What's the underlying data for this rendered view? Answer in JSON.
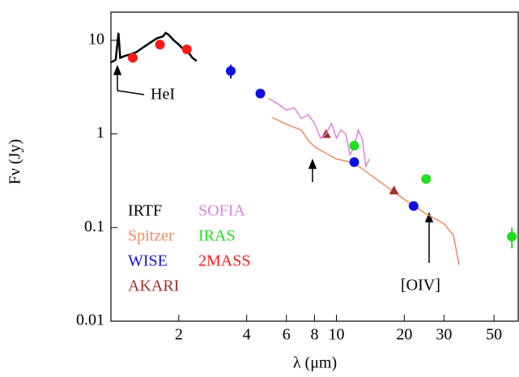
{
  "chart_data": {
    "type": "scatter",
    "log_x": true,
    "log_y": true,
    "x_label": "λ (μm)",
    "y_label": "Fν (Jy)",
    "xlim": [
      1,
      64
    ],
    "ylim": [
      0.01,
      20
    ],
    "xticks": [
      2,
      4,
      6,
      8,
      10,
      20,
      30,
      50
    ],
    "yticks": [
      0.01,
      0.1,
      1,
      10
    ],
    "annotations": [
      "HeI",
      "[OIV]"
    ],
    "series": [
      {
        "name": "IRTF",
        "color": "#000000",
        "kind": "line",
        "x": [
          1.0,
          1.05,
          1.08,
          1.1,
          1.15,
          1.2,
          1.3,
          1.4,
          1.5,
          1.6,
          1.7,
          1.75,
          1.8,
          1.9,
          2.0,
          2.1,
          2.2,
          2.3,
          2.4
        ],
        "values": [
          5.8,
          6.2,
          12,
          6.5,
          6.8,
          7,
          7.5,
          8.5,
          9.5,
          10.5,
          11,
          12,
          11.5,
          10,
          9,
          8,
          7.5,
          6.5,
          6
        ]
      },
      {
        "name": "Spitzer",
        "color": "#f08a5d",
        "kind": "line",
        "x": [
          5.2,
          6,
          7,
          7.5,
          8,
          9,
          10,
          12,
          15,
          20,
          25,
          30,
          33,
          35
        ],
        "values": [
          1.5,
          1.27,
          1.1,
          0.85,
          0.73,
          0.62,
          0.54,
          0.49,
          0.33,
          0.2,
          0.14,
          0.11,
          0.083,
          0.04
        ]
      },
      {
        "name": "WISE",
        "color": "#1010e0",
        "kind": "marker",
        "shape": "circle",
        "x": [
          3.4,
          4.6,
          12,
          22
        ],
        "values": [
          4.7,
          2.7,
          0.5,
          0.17
        ],
        "errors": [
          0.8,
          null,
          null,
          null
        ]
      },
      {
        "name": "AKARI",
        "color": "#a0302a",
        "kind": "marker",
        "shape": "triangle",
        "x": [
          9,
          18
        ],
        "values": [
          1.0,
          0.25
        ]
      },
      {
        "name": "SOFIA",
        "color": "#e080e0",
        "kind": "line",
        "x": [
          5,
          5.5,
          6,
          6.5,
          7,
          7.5,
          8,
          8.5,
          9,
          9.5,
          10,
          10.5,
          11,
          11.5,
          12,
          12.5,
          13,
          13.5,
          14
        ],
        "values": [
          2.4,
          2.1,
          1.8,
          1.9,
          1.46,
          1.6,
          1.3,
          0.9,
          1.0,
          1.3,
          0.9,
          1.1,
          1.0,
          0.6,
          0.73,
          1.1,
          0.9,
          0.45,
          0.54
        ]
      },
      {
        "name": "IRAS",
        "color": "#22dd22",
        "kind": "marker",
        "shape": "circle",
        "x": [
          12,
          25,
          60
        ],
        "values": [
          0.75,
          0.33,
          0.08
        ],
        "errors": [
          null,
          null,
          0.02
        ]
      },
      {
        "name": "2MASS",
        "color": "#ff1a1a",
        "kind": "marker",
        "shape": "circle",
        "x": [
          1.25,
          1.65,
          2.17
        ],
        "values": [
          6.5,
          9,
          8
        ]
      }
    ]
  }
}
